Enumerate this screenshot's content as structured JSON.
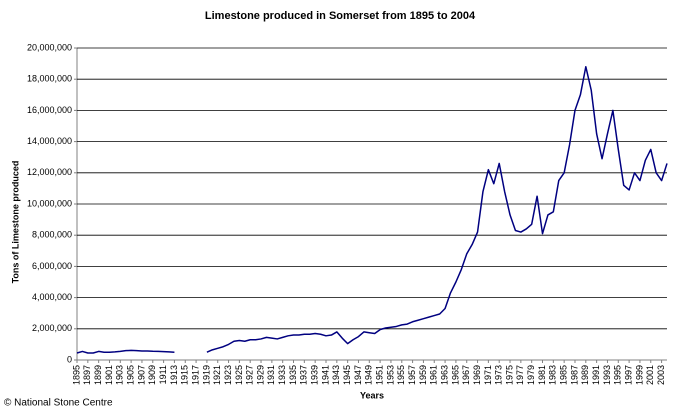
{
  "chart_data": {
    "type": "line",
    "title": "Limestone produced in Somerset from 1895 to 2004",
    "ylabel": "Tons of Limestone produced",
    "xlabel": "Years",
    "footer": "© National Stone Centre",
    "x": [
      1895,
      1896,
      1897,
      1898,
      1899,
      1900,
      1901,
      1902,
      1903,
      1904,
      1905,
      1906,
      1907,
      1908,
      1909,
      1910,
      1911,
      1912,
      1913,
      1914,
      1915,
      1916,
      1917,
      1918,
      1919,
      1920,
      1921,
      1922,
      1923,
      1924,
      1925,
      1926,
      1927,
      1928,
      1929,
      1930,
      1931,
      1932,
      1933,
      1934,
      1935,
      1936,
      1937,
      1938,
      1939,
      1940,
      1941,
      1942,
      1943,
      1944,
      1945,
      1946,
      1947,
      1948,
      1949,
      1950,
      1951,
      1952,
      1953,
      1954,
      1955,
      1956,
      1957,
      1958,
      1959,
      1960,
      1961,
      1962,
      1963,
      1964,
      1965,
      1966,
      1967,
      1968,
      1969,
      1970,
      1971,
      1972,
      1973,
      1974,
      1975,
      1976,
      1977,
      1978,
      1979,
      1980,
      1981,
      1982,
      1983,
      1984,
      1985,
      1986,
      1987,
      1988,
      1989,
      1990,
      1991,
      1992,
      1993,
      1994,
      1995,
      1996,
      1997,
      1998,
      1999,
      2000,
      2001,
      2002,
      2003,
      2004
    ],
    "series": [
      {
        "name": "Limestone",
        "color": "#000080",
        "values": [
          450000,
          550000,
          450000,
          450000,
          550000,
          500000,
          500000,
          520000,
          550000,
          600000,
          620000,
          600000,
          580000,
          580000,
          560000,
          550000,
          540000,
          520000,
          500000,
          null,
          null,
          null,
          null,
          null,
          500000,
          650000,
          750000,
          850000,
          1000000,
          1200000,
          1250000,
          1200000,
          1300000,
          1300000,
          1350000,
          1450000,
          1400000,
          1350000,
          1450000,
          1550000,
          1600000,
          1600000,
          1650000,
          1650000,
          1700000,
          1650000,
          1550000,
          1600000,
          1800000,
          1400000,
          1050000,
          1300000,
          1500000,
          1800000,
          1750000,
          1700000,
          1950000,
          2050000,
          2100000,
          2150000,
          2250000,
          2300000,
          2450000,
          2550000,
          2650000,
          2750000,
          2850000,
          2950000,
          3300000,
          4300000,
          5000000,
          5800000,
          6800000,
          7400000,
          8200000,
          10800000,
          12200000,
          11300000,
          12600000,
          10800000,
          9300000,
          8300000,
          8200000,
          8400000,
          8700000,
          10500000,
          8100000,
          9300000,
          9500000,
          11500000,
          12000000,
          13800000,
          16000000,
          17000000,
          18800000,
          17300000,
          14500000,
          12900000,
          14500000,
          16000000,
          13500000,
          11200000,
          10900000,
          12000000,
          11500000,
          12800000,
          13500000,
          12000000,
          11500000,
          12600000
        ]
      }
    ],
    "xlim": [
      1895,
      2004
    ],
    "xticks": [
      1895,
      1897,
      1899,
      1901,
      1903,
      1905,
      1907,
      1909,
      1911,
      1913,
      1915,
      1917,
      1919,
      1921,
      1923,
      1925,
      1927,
      1929,
      1931,
      1933,
      1935,
      1937,
      1939,
      1941,
      1943,
      1945,
      1947,
      1949,
      1951,
      1953,
      1955,
      1957,
      1959,
      1961,
      1963,
      1965,
      1967,
      1969,
      1971,
      1973,
      1975,
      1977,
      1979,
      1981,
      1983,
      1985,
      1987,
      1989,
      1991,
      1993,
      1995,
      1997,
      1999,
      2001,
      2003
    ],
    "ylim": [
      0,
      20000000
    ],
    "yticks": [
      0,
      {
        "value": 2000000,
        "label": "2,000,000"
      },
      {
        "value": 4000000,
        "label": "4,000,000"
      },
      {
        "value": 6000000,
        "label": "6,000,000"
      },
      {
        "value": 8000000,
        "label": "8,000,000"
      },
      {
        "value": 10000000,
        "label": "10,000,000"
      },
      {
        "value": 12000000,
        "label": "12,000,000"
      },
      {
        "value": 14000000,
        "label": "14,000,000"
      },
      {
        "value": 16000000,
        "label": "16,000,000"
      },
      {
        "value": 18000000,
        "label": "18,000,000"
      },
      {
        "value": 20000000,
        "label": "20,000,000"
      }
    ],
    "grid": true
  }
}
